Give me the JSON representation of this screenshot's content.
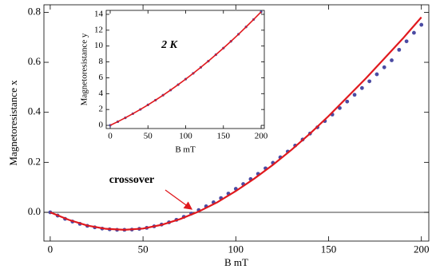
{
  "chart_data": [
    {
      "type": "line",
      "xlabel": "B mT",
      "ylabel": "Magnetoresistance x",
      "annotation": "crossover",
      "xlim": [
        -3.4,
        204
      ],
      "ylim": [
        -0.115,
        0.83
      ],
      "xticks": [
        0,
        50,
        100,
        150,
        200
      ],
      "yticks": [
        {
          "value": 0,
          "label": "0.0"
        },
        0.2,
        0.4,
        0.6,
        0.8
      ],
      "series": [
        {
          "style": "dots",
          "color": "#4b4ba3",
          "x": [
            0,
            4,
            8,
            12,
            16,
            20,
            24,
            28,
            32,
            36,
            40,
            44,
            48,
            52,
            56,
            60,
            64,
            68,
            72,
            76,
            80,
            84,
            88,
            92,
            96,
            100,
            104,
            108,
            112,
            116,
            120,
            124,
            128,
            132,
            136,
            140,
            144,
            148,
            152,
            156,
            160,
            164,
            168,
            172,
            176,
            180,
            184,
            188,
            192,
            196,
            200
          ],
          "values": [
            0,
            -0.013,
            -0.026,
            -0.037,
            -0.046,
            -0.054,
            -0.06,
            -0.065,
            -0.068,
            -0.07,
            -0.07,
            -0.069,
            -0.066,
            -0.062,
            -0.056,
            -0.049,
            -0.04,
            -0.03,
            -0.018,
            -0.005,
            0.009,
            0.024,
            0.04,
            0.057,
            0.075,
            0.094,
            0.113,
            0.133,
            0.154,
            0.176,
            0.198,
            0.22,
            0.243,
            0.267,
            0.291,
            0.315,
            0.34,
            0.365,
            0.391,
            0.417,
            0.443,
            0.47,
            0.497,
            0.524,
            0.552,
            0.58,
            0.608,
            0.65,
            0.684,
            0.718,
            0.75
          ]
        },
        {
          "style": "line",
          "color": "#e0191e",
          "x": [
            0,
            10,
            20,
            30,
            40,
            50,
            60,
            70,
            80,
            90,
            100,
            110,
            120,
            130,
            140,
            150,
            160,
            170,
            180,
            190,
            200
          ],
          "values": [
            0,
            -0.03,
            -0.053,
            -0.066,
            -0.07,
            -0.065,
            -0.05,
            -0.027,
            0.003,
            0.04,
            0.085,
            0.135,
            0.19,
            0.25,
            0.315,
            0.385,
            0.46,
            0.535,
            0.615,
            0.695,
            0.78
          ]
        }
      ]
    },
    {
      "type": "line",
      "title": "2 K",
      "xlabel": "B mT",
      "ylabel": "Magnetoresistance y",
      "xlim": [
        -5.3,
        204.2
      ],
      "ylim": [
        -0.4,
        14.5
      ],
      "xticks": [
        0,
        50,
        100,
        150,
        200
      ],
      "yticks": [
        0,
        2,
        4,
        6,
        8,
        10,
        12,
        14
      ],
      "series": [
        {
          "style": "dots",
          "color": "#4b4ba3",
          "x": [
            0,
            10,
            20,
            30,
            40,
            50,
            60,
            70,
            80,
            90,
            100,
            110,
            120,
            130,
            140,
            150,
            160,
            170,
            180,
            190,
            200
          ],
          "values": [
            0,
            0.46,
            0.95,
            1.47,
            2.01,
            2.58,
            3.18,
            3.8,
            4.45,
            5.13,
            5.83,
            6.56,
            7.32,
            8.1,
            8.91,
            9.74,
            10.6,
            11.49,
            12.41,
            13.35,
            14.32
          ]
        },
        {
          "style": "line",
          "color": "#e0191e",
          "x": [
            0,
            10,
            20,
            30,
            40,
            50,
            60,
            70,
            80,
            90,
            100,
            110,
            120,
            130,
            140,
            150,
            160,
            170,
            180,
            190,
            200
          ],
          "values": [
            0,
            0.46,
            0.95,
            1.47,
            2.01,
            2.58,
            3.18,
            3.8,
            4.45,
            5.13,
            5.83,
            6.56,
            7.32,
            8.1,
            8.91,
            9.74,
            10.6,
            11.49,
            12.41,
            13.35,
            14.32
          ]
        }
      ]
    }
  ]
}
